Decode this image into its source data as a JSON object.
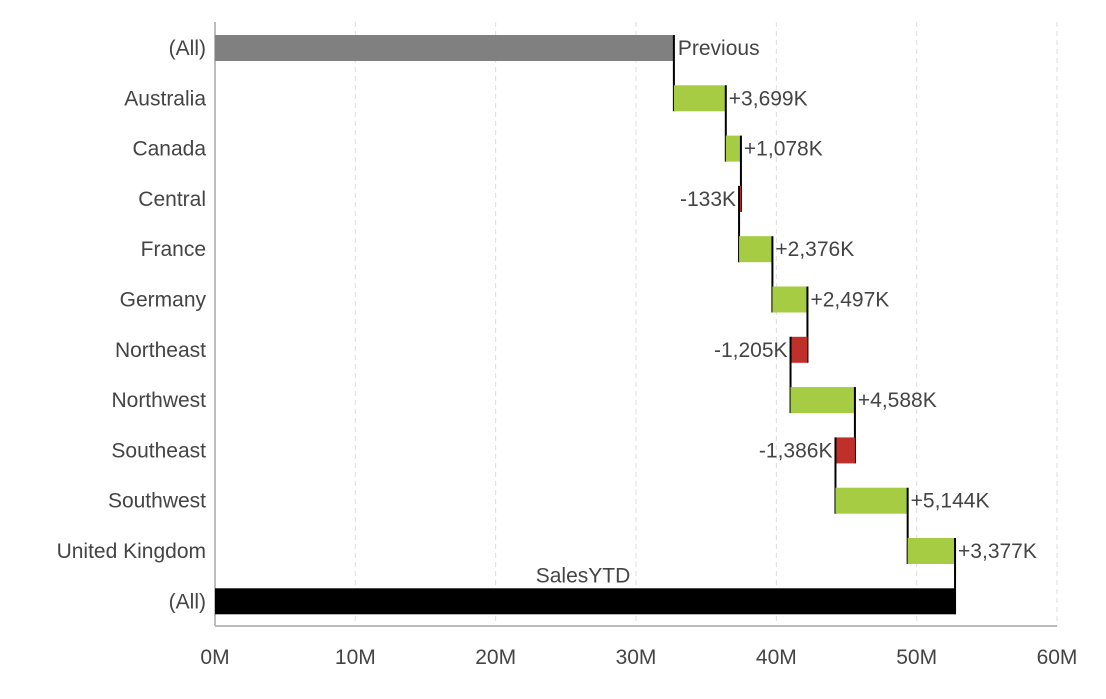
{
  "chart_data": {
    "type": "waterfall",
    "orientation": "horizontal",
    "unit": "K",
    "start": {
      "category": "(All)",
      "label": "Previous",
      "value": 32700
    },
    "steps": [
      {
        "category": "Australia",
        "value": 3699,
        "label": "+3,699K"
      },
      {
        "category": "Canada",
        "value": 1078,
        "label": "+1,078K"
      },
      {
        "category": "Central",
        "value": -133,
        "label": "-133K"
      },
      {
        "category": "France",
        "value": 2376,
        "label": "+2,376K"
      },
      {
        "category": "Germany",
        "value": 2497,
        "label": "+2,497K"
      },
      {
        "category": "Northeast",
        "value": -1205,
        "label": "-1,205K"
      },
      {
        "category": "Northwest",
        "value": 4588,
        "label": "+4,588K"
      },
      {
        "category": "Southeast",
        "value": -1386,
        "label": "-1,386K"
      },
      {
        "category": "Southwest",
        "value": 5144,
        "label": "+5,144K"
      },
      {
        "category": "United Kingdom",
        "value": 3377,
        "label": "+3,377K"
      }
    ],
    "end": {
      "category": "(All)",
      "label": "SalesYTD",
      "value": 52735
    },
    "xlim": [
      0,
      60000
    ],
    "xticks": [
      0,
      10000,
      20000,
      30000,
      40000,
      50000,
      60000
    ],
    "xtick_labels": [
      "0M",
      "10M",
      "20M",
      "30M",
      "40M",
      "50M",
      "60M"
    ],
    "grid": true,
    "colors": {
      "start": "#808080",
      "increase": "#a5cc42",
      "decrease": "#c0302a",
      "end": "#000000",
      "connector": "#000000",
      "grid": "#dddddd",
      "axis": "#bbbbbb"
    }
  }
}
